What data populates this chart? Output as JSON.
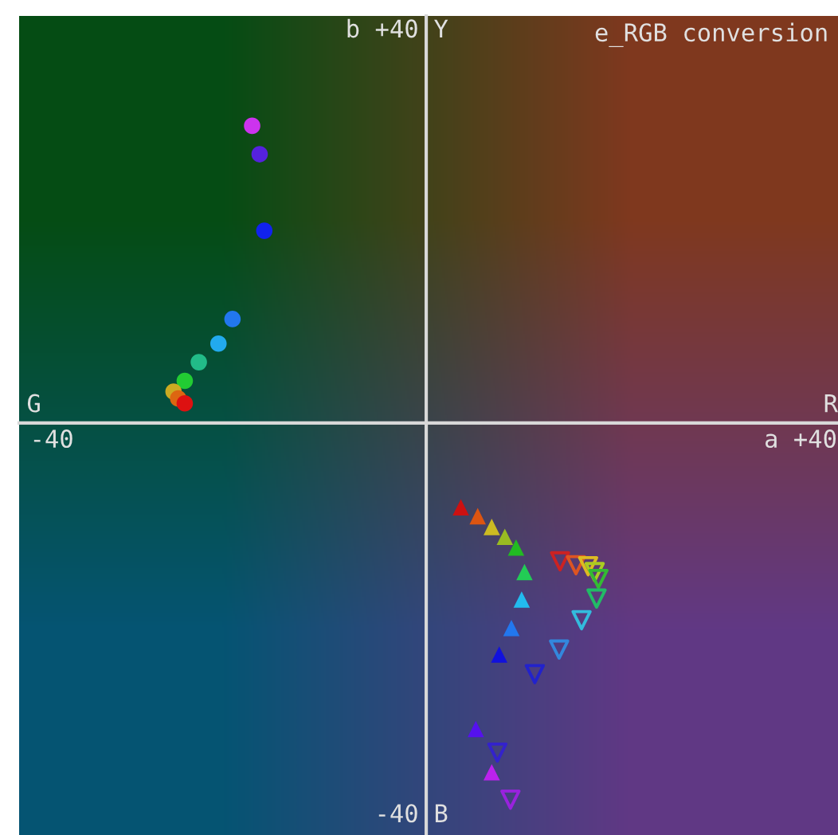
{
  "chart_data": {
    "type": "scatter",
    "title": "e_RGB conversion",
    "xlim": [
      -43.5,
      44
    ],
    "ylim": [
      -42,
      41.5
    ],
    "xticks": [
      {
        "value": -40,
        "label": "-40"
      },
      {
        "value": 40,
        "label": "a +40"
      }
    ],
    "yticks": [
      {
        "value": 40,
        "label": "b +40"
      },
      {
        "value": -40,
        "label": "-40"
      }
    ],
    "annotations": [
      "Y",
      "R",
      "B",
      "G"
    ],
    "series": [
      {
        "marker": "circle",
        "x": [
          -18.6,
          -17.8,
          -17.3,
          -20.7,
          -22.2,
          -24.3,
          -25.8,
          -27.0,
          -26.5,
          -25.8
        ],
        "values": [
          30.3,
          27.4,
          19.6,
          10.6,
          8.1,
          6.2,
          4.3,
          3.2,
          2.5,
          2.0
        ],
        "colors": [
          "#cc33ee",
          "#5522dd",
          "#1122ee",
          "#2277ee",
          "#22aaee",
          "#22bb88",
          "#22cc33",
          "#ccaa22",
          "#dd6611",
          "#dd1111"
        ]
      },
      {
        "marker": "triangle",
        "x": [
          3.7,
          5.5,
          7.0,
          8.4,
          9.6,
          10.5,
          10.2,
          9.1,
          7.8,
          5.3,
          7.0
        ],
        "values": [
          -8.6,
          -9.5,
          -10.6,
          -11.6,
          -12.7,
          -15.2,
          -18.0,
          -20.9,
          -23.6,
          -31.2,
          -35.6
        ],
        "colors": [
          "#cc1111",
          "#dd5511",
          "#ccbb22",
          "#99bb22",
          "#22bb22",
          "#22cc55",
          "#22bbee",
          "#2277ee",
          "#1111dd",
          "#5511ee",
          "#bb22ee"
        ]
      },
      {
        "x": [
          14.3,
          16.0,
          17.3,
          18.0,
          18.4,
          18.2,
          16.6,
          14.2,
          11.6,
          7.6,
          9.0
        ],
        "values": [
          -14.1,
          -14.5,
          -14.6,
          -15.2,
          -15.9,
          -17.9,
          -20.1,
          -23.1,
          -25.6,
          -33.6,
          -38.4
        ],
        "colors": [
          "#cc2222",
          "#dd5522",
          "#ddbb22",
          "#aacc22",
          "#33bb33",
          "#22bb66",
          "#33bbdd",
          "#3388dd",
          "#2222cc",
          "#3322cc",
          "#9922dd"
        ]
      }
    ]
  }
}
